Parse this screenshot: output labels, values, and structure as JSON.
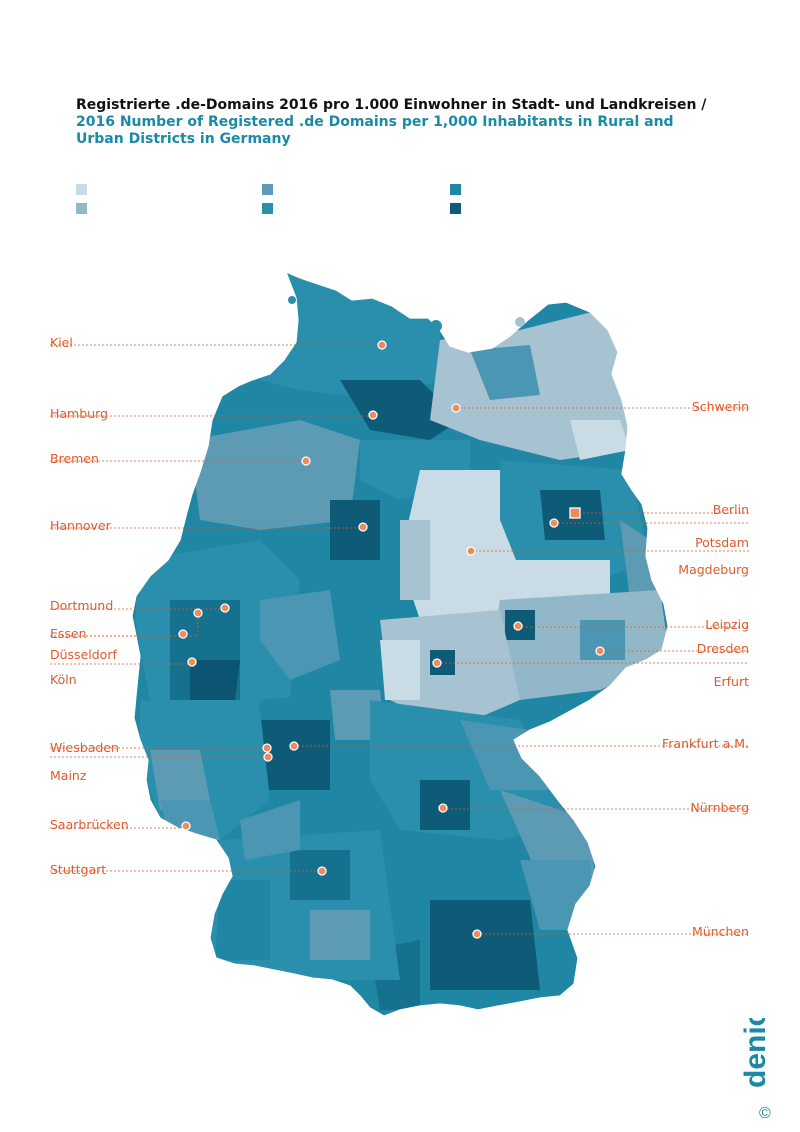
{
  "title": {
    "de": "Registrierte .de-Domains 2016 pro 1.000 Einwohner in Stadt- und Landkreisen /",
    "en": "2016 Number of Registered .de Domains per 1,000 Inhabitants in Rural and Urban Districts in Germany"
  },
  "legend_colors": [
    "#c9dbe4",
    "#92b7c9",
    "#5d9bb5",
    "#2a8fac",
    "#1f86a4",
    "#0e5b78"
  ],
  "colors": {
    "city_line": "#e05a2b",
    "city_marker": "#ef8a5c",
    "region_light": "#a7c3d2",
    "region_mid": "#4b96b3",
    "region_dark": "#16718f",
    "region_darkest": "#0b5572"
  },
  "cities_left": [
    {
      "name": "Kiel"
    },
    {
      "name": "Hamburg"
    },
    {
      "name": "Bremen"
    },
    {
      "name": "Hannover"
    },
    {
      "name": "Dortmund"
    },
    {
      "name": "Essen"
    },
    {
      "name": "Düsseldorf"
    },
    {
      "name": "Köln"
    },
    {
      "name": "Wiesbaden"
    },
    {
      "name": "Mainz"
    },
    {
      "name": "Saarbrücken"
    },
    {
      "name": "Stuttgart"
    }
  ],
  "cities_right": [
    {
      "name": "Schwerin"
    },
    {
      "name": "Berlin"
    },
    {
      "name": "Potsdam"
    },
    {
      "name": "Magdeburg"
    },
    {
      "name": "Leipzig"
    },
    {
      "name": "Dresden"
    },
    {
      "name": "Erfurt"
    },
    {
      "name": "Frankfurt a.M."
    },
    {
      "name": "Nürnberg"
    },
    {
      "name": "München"
    }
  ],
  "logo": {
    "text": "denic",
    "copyright": "©"
  }
}
